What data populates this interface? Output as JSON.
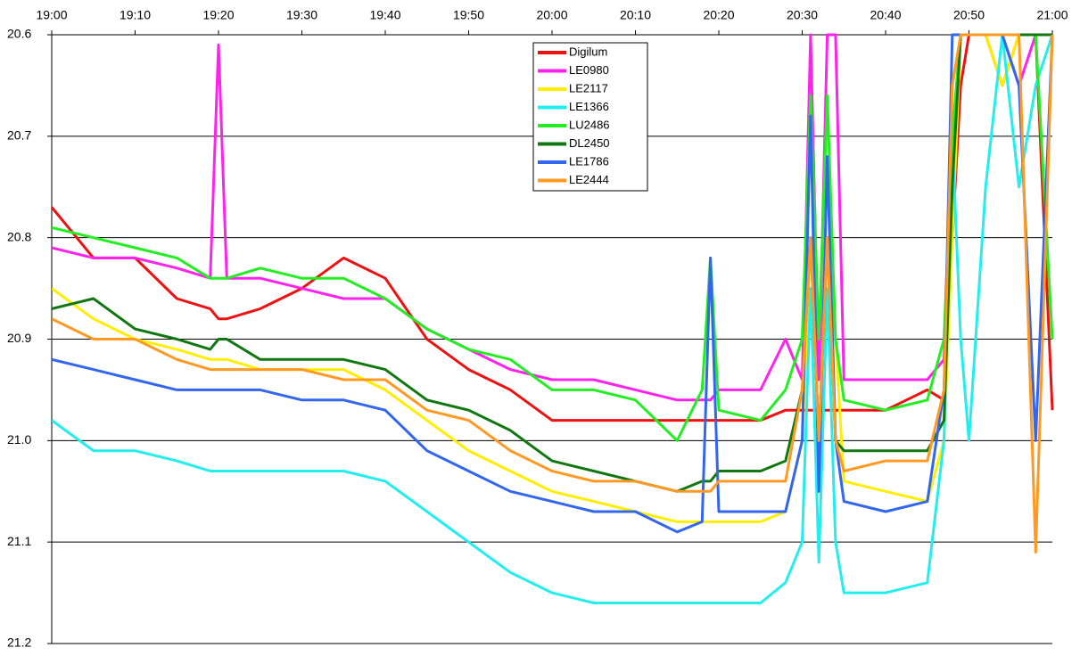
{
  "chart_data": {
    "type": "line",
    "x": [
      "19:00",
      "19:05",
      "19:10",
      "19:15",
      "19:19",
      "19:20",
      "19:21",
      "19:25",
      "19:30",
      "19:35",
      "19:40",
      "19:45",
      "19:50",
      "19:55",
      "20:00",
      "20:05",
      "20:10",
      "20:15",
      "20:18",
      "20:19",
      "20:20",
      "20:25",
      "20:28",
      "20:30",
      "20:31",
      "20:32",
      "20:33",
      "20:34",
      "20:35",
      "20:40",
      "20:45",
      "20:47",
      "20:48",
      "20:49",
      "20:50",
      "20:52",
      "20:54",
      "20:56",
      "20:58",
      "21:00"
    ],
    "series": [
      {
        "name": "Digilum",
        "color": "#ee1111",
        "values": [
          20.77,
          20.82,
          20.82,
          20.86,
          20.87,
          20.88,
          20.88,
          20.87,
          20.85,
          20.82,
          20.84,
          20.9,
          20.93,
          20.95,
          20.98,
          20.98,
          20.98,
          20.98,
          20.98,
          20.98,
          20.98,
          20.98,
          20.97,
          20.97,
          20.97,
          20.97,
          20.97,
          20.97,
          20.97,
          20.97,
          20.95,
          20.96,
          20.8,
          20.65,
          20.6,
          20.6,
          20.65,
          20.6,
          20.6,
          20.97
        ]
      },
      {
        "name": "LE0980",
        "color": "#ff22ee",
        "values": [
          20.81,
          20.82,
          20.82,
          20.83,
          20.84,
          20.61,
          20.84,
          20.84,
          20.85,
          20.86,
          20.86,
          20.89,
          20.91,
          20.93,
          20.94,
          20.94,
          20.95,
          20.96,
          20.96,
          20.96,
          20.95,
          20.95,
          20.9,
          20.94,
          20.6,
          20.94,
          20.6,
          20.6,
          20.94,
          20.94,
          20.94,
          20.92,
          20.7,
          20.6,
          20.6,
          20.6,
          20.6,
          20.65,
          20.6,
          20.6
        ]
      },
      {
        "name": "LE2117",
        "color": "#ffee00",
        "values": [
          20.85,
          20.88,
          20.9,
          20.91,
          20.92,
          20.92,
          20.92,
          20.93,
          20.93,
          20.93,
          20.95,
          20.98,
          21.01,
          21.03,
          21.05,
          21.06,
          21.07,
          21.08,
          21.08,
          21.08,
          21.08,
          21.08,
          21.07,
          21.0,
          20.8,
          21.0,
          20.8,
          20.9,
          21.04,
          21.05,
          21.06,
          21.0,
          20.8,
          20.6,
          20.6,
          20.6,
          20.65,
          20.6,
          20.6,
          20.6
        ]
      },
      {
        "name": "LE1366",
        "color": "#22eeee",
        "values": [
          20.98,
          21.01,
          21.01,
          21.02,
          21.03,
          21.03,
          21.03,
          21.03,
          21.03,
          21.03,
          21.04,
          21.07,
          21.1,
          21.13,
          21.15,
          21.16,
          21.16,
          21.16,
          21.16,
          21.16,
          21.16,
          21.16,
          21.14,
          21.1,
          20.85,
          21.12,
          20.85,
          21.1,
          21.15,
          21.15,
          21.14,
          21.0,
          20.7,
          20.9,
          21.0,
          20.75,
          20.6,
          20.75,
          20.65,
          20.6
        ]
      },
      {
        "name": "LU2486",
        "color": "#22ee22",
        "values": [
          20.79,
          20.8,
          20.81,
          20.82,
          20.84,
          20.84,
          20.84,
          20.83,
          20.84,
          20.84,
          20.86,
          20.89,
          20.91,
          20.92,
          20.95,
          20.95,
          20.96,
          21.0,
          20.95,
          20.82,
          20.97,
          20.98,
          20.95,
          20.9,
          20.66,
          20.9,
          20.66,
          20.9,
          20.96,
          20.97,
          20.96,
          20.9,
          20.7,
          20.6,
          20.6,
          20.6,
          20.6,
          20.6,
          20.6,
          20.9
        ]
      },
      {
        "name": "DL2450",
        "color": "#117711",
        "values": [
          20.87,
          20.86,
          20.89,
          20.9,
          20.91,
          20.9,
          20.9,
          20.92,
          20.92,
          20.92,
          20.93,
          20.96,
          20.97,
          20.99,
          21.02,
          21.03,
          21.04,
          21.05,
          21.04,
          21.04,
          21.03,
          21.03,
          21.02,
          20.95,
          20.8,
          21.0,
          20.8,
          21.0,
          21.01,
          21.01,
          21.01,
          20.98,
          20.75,
          20.6,
          20.6,
          20.6,
          20.6,
          20.6,
          20.6,
          20.6
        ]
      },
      {
        "name": "LE1786",
        "color": "#3366ee",
        "values": [
          20.92,
          20.93,
          20.94,
          20.95,
          20.95,
          20.95,
          20.95,
          20.95,
          20.96,
          20.96,
          20.97,
          21.01,
          21.03,
          21.05,
          21.06,
          21.07,
          21.07,
          21.09,
          21.08,
          20.82,
          21.07,
          21.07,
          21.07,
          21.0,
          20.68,
          21.05,
          20.72,
          21.0,
          21.06,
          21.07,
          21.06,
          20.95,
          20.6,
          20.6,
          20.6,
          20.6,
          20.6,
          20.65,
          21.0,
          20.6
        ]
      },
      {
        "name": "LE2444",
        "color": "#ff9922",
        "values": [
          20.88,
          20.9,
          20.9,
          20.92,
          20.93,
          20.93,
          20.93,
          20.93,
          20.93,
          20.94,
          20.94,
          20.97,
          20.98,
          21.01,
          21.03,
          21.04,
          21.04,
          21.05,
          21.05,
          21.05,
          21.04,
          21.04,
          21.04,
          20.95,
          20.8,
          21.0,
          20.8,
          21.0,
          21.03,
          21.02,
          21.02,
          20.95,
          20.65,
          20.6,
          20.6,
          20.6,
          20.6,
          20.6,
          21.11,
          20.6
        ]
      }
    ],
    "xlim": [
      "19:00",
      "21:00"
    ],
    "xticks": [
      "19:00",
      "19:10",
      "19:20",
      "19:30",
      "19:40",
      "19:50",
      "20:00",
      "20:10",
      "20:20",
      "20:30",
      "20:40",
      "20:50",
      "21:00"
    ],
    "ylim": [
      20.6,
      21.2
    ],
    "y_inverted": true,
    "yticks": [
      20.6,
      20.7,
      20.8,
      20.9,
      {
        "value": 21,
        "label": "21.0"
      },
      21.1,
      21.2
    ],
    "grid": true,
    "legend": "top"
  }
}
